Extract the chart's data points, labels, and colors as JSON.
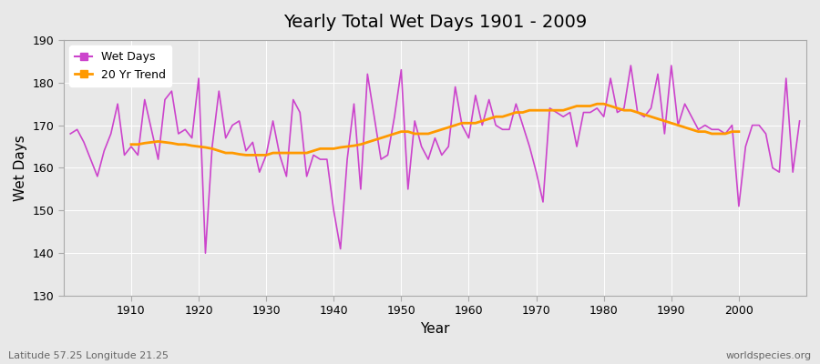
{
  "title": "Yearly Total Wet Days 1901 - 2009",
  "xlabel": "Year",
  "ylabel": "Wet Days",
  "subtitle_left": "Latitude 57.25 Longitude 21.25",
  "subtitle_right": "worldspecies.org",
  "ylim": [
    130,
    190
  ],
  "xlim": [
    1901,
    2009
  ],
  "yticks": [
    130,
    140,
    150,
    160,
    170,
    180,
    190
  ],
  "xticks": [
    1910,
    1920,
    1930,
    1940,
    1950,
    1960,
    1970,
    1980,
    1990,
    2000
  ],
  "wet_days_color": "#cc44cc",
  "trend_color": "#ff9900",
  "bg_color": "#e8e8e8",
  "plot_bg_color": "#e8e8e8",
  "years": [
    1901,
    1902,
    1903,
    1904,
    1905,
    1906,
    1907,
    1908,
    1909,
    1910,
    1911,
    1912,
    1913,
    1914,
    1915,
    1916,
    1917,
    1918,
    1919,
    1920,
    1921,
    1922,
    1923,
    1924,
    1925,
    1926,
    1927,
    1928,
    1929,
    1930,
    1931,
    1932,
    1933,
    1934,
    1935,
    1936,
    1937,
    1938,
    1939,
    1940,
    1941,
    1942,
    1943,
    1944,
    1945,
    1946,
    1947,
    1948,
    1949,
    1950,
    1951,
    1952,
    1953,
    1954,
    1955,
    1956,
    1957,
    1958,
    1959,
    1960,
    1961,
    1962,
    1963,
    1964,
    1965,
    1966,
    1967,
    1968,
    1969,
    1970,
    1971,
    1972,
    1973,
    1974,
    1975,
    1976,
    1977,
    1978,
    1979,
    1980,
    1981,
    1982,
    1983,
    1984,
    1985,
    1986,
    1987,
    1988,
    1989,
    1990,
    1991,
    1992,
    1993,
    1994,
    1995,
    1996,
    1997,
    1998,
    1999,
    2000,
    2001,
    2002,
    2003,
    2004,
    2005,
    2006,
    2007,
    2008,
    2009
  ],
  "wet_days": [
    168,
    169,
    166,
    162,
    158,
    164,
    168,
    175,
    163,
    165,
    163,
    176,
    169,
    162,
    176,
    178,
    168,
    169,
    167,
    181,
    140,
    165,
    178,
    167,
    170,
    171,
    164,
    166,
    159,
    163,
    171,
    163,
    158,
    176,
    173,
    158,
    163,
    162,
    162,
    150,
    141,
    162,
    175,
    155,
    182,
    172,
    162,
    163,
    172,
    183,
    155,
    171,
    165,
    162,
    167,
    163,
    165,
    179,
    170,
    167,
    177,
    170,
    176,
    170,
    169,
    169,
    175,
    170,
    165,
    159,
    152,
    174,
    173,
    172,
    173,
    165,
    173,
    173,
    174,
    172,
    181,
    173,
    174,
    184,
    173,
    172,
    174,
    182,
    168,
    184,
    170,
    175,
    172,
    169,
    170,
    169,
    169,
    168,
    170,
    151,
    165,
    170,
    170,
    168,
    160,
    159,
    181,
    159,
    171
  ],
  "trend_years": [
    1910,
    1911,
    1912,
    1913,
    1914,
    1915,
    1916,
    1917,
    1918,
    1919,
    1920,
    1921,
    1922,
    1923,
    1924,
    1925,
    1926,
    1927,
    1928,
    1929,
    1930,
    1931,
    1932,
    1933,
    1934,
    1935,
    1936,
    1937,
    1938,
    1939,
    1940,
    1941,
    1942,
    1943,
    1944,
    1945,
    1946,
    1947,
    1948,
    1949,
    1950,
    1951,
    1952,
    1953,
    1954,
    1955,
    1956,
    1957,
    1958,
    1959,
    1960,
    1961,
    1962,
    1963,
    1964,
    1965,
    1966,
    1967,
    1968,
    1969,
    1970,
    1971,
    1972,
    1973,
    1974,
    1975,
    1976,
    1977,
    1978,
    1979,
    1980,
    1981,
    1982,
    1983,
    1984,
    1985,
    1986,
    1987,
    1988,
    1989,
    1990,
    1991,
    1992,
    1993,
    1994,
    1995,
    1996,
    1997,
    1998,
    1999,
    2000
  ],
  "trend_values": [
    165.5,
    165.5,
    165.8,
    166.0,
    166.2,
    166.0,
    165.8,
    165.5,
    165.5,
    165.2,
    165.0,
    164.8,
    164.5,
    164.0,
    163.5,
    163.5,
    163.2,
    163.0,
    163.0,
    163.0,
    163.0,
    163.5,
    163.5,
    163.5,
    163.5,
    163.5,
    163.5,
    164.0,
    164.5,
    164.5,
    164.5,
    164.8,
    165.0,
    165.2,
    165.5,
    166.0,
    166.5,
    167.0,
    167.5,
    168.0,
    168.5,
    168.5,
    168.0,
    168.0,
    168.0,
    168.5,
    169.0,
    169.5,
    170.0,
    170.5,
    170.5,
    170.5,
    171.0,
    171.5,
    172.0,
    172.0,
    172.5,
    173.0,
    173.0,
    173.5,
    173.5,
    173.5,
    173.5,
    173.5,
    173.5,
    174.0,
    174.5,
    174.5,
    174.5,
    175.0,
    175.0,
    174.5,
    174.0,
    173.5,
    173.5,
    173.0,
    172.5,
    172.0,
    171.5,
    171.0,
    170.5,
    170.0,
    169.5,
    169.0,
    168.5,
    168.5,
    168.0,
    168.0,
    168.0,
    168.5,
    168.5
  ]
}
